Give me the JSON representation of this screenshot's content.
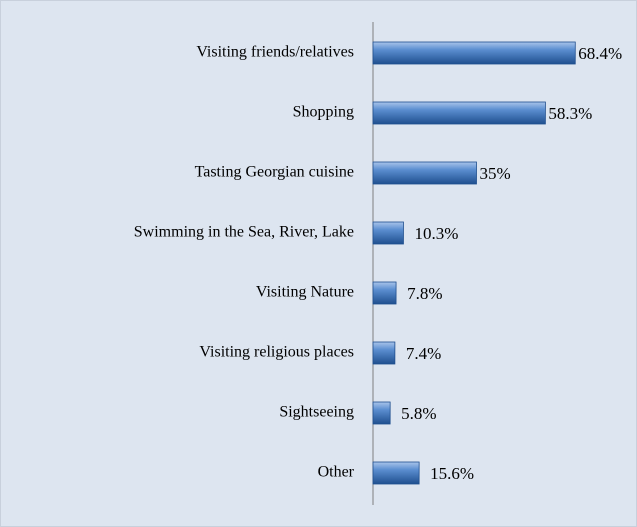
{
  "chart_data": {
    "type": "bar",
    "orientation": "horizontal",
    "categories": [
      "Visiting friends/relatives",
      "Shopping",
      "Tasting Georgian cuisine",
      "Swimming in the Sea, River, Lake",
      "Visiting Nature",
      "Visiting religious places",
      "Sightseeing",
      "Other"
    ],
    "values": [
      68.4,
      58.3,
      35,
      10.3,
      7.8,
      7.4,
      5.8,
      15.6
    ],
    "value_labels": [
      "68.4%",
      "58.3%",
      "35%",
      "10.3%",
      "7.8%",
      "7.4%",
      "5.8%",
      "15.6%"
    ],
    "color": "#4f81bd",
    "xlim": [
      0,
      70
    ]
  }
}
